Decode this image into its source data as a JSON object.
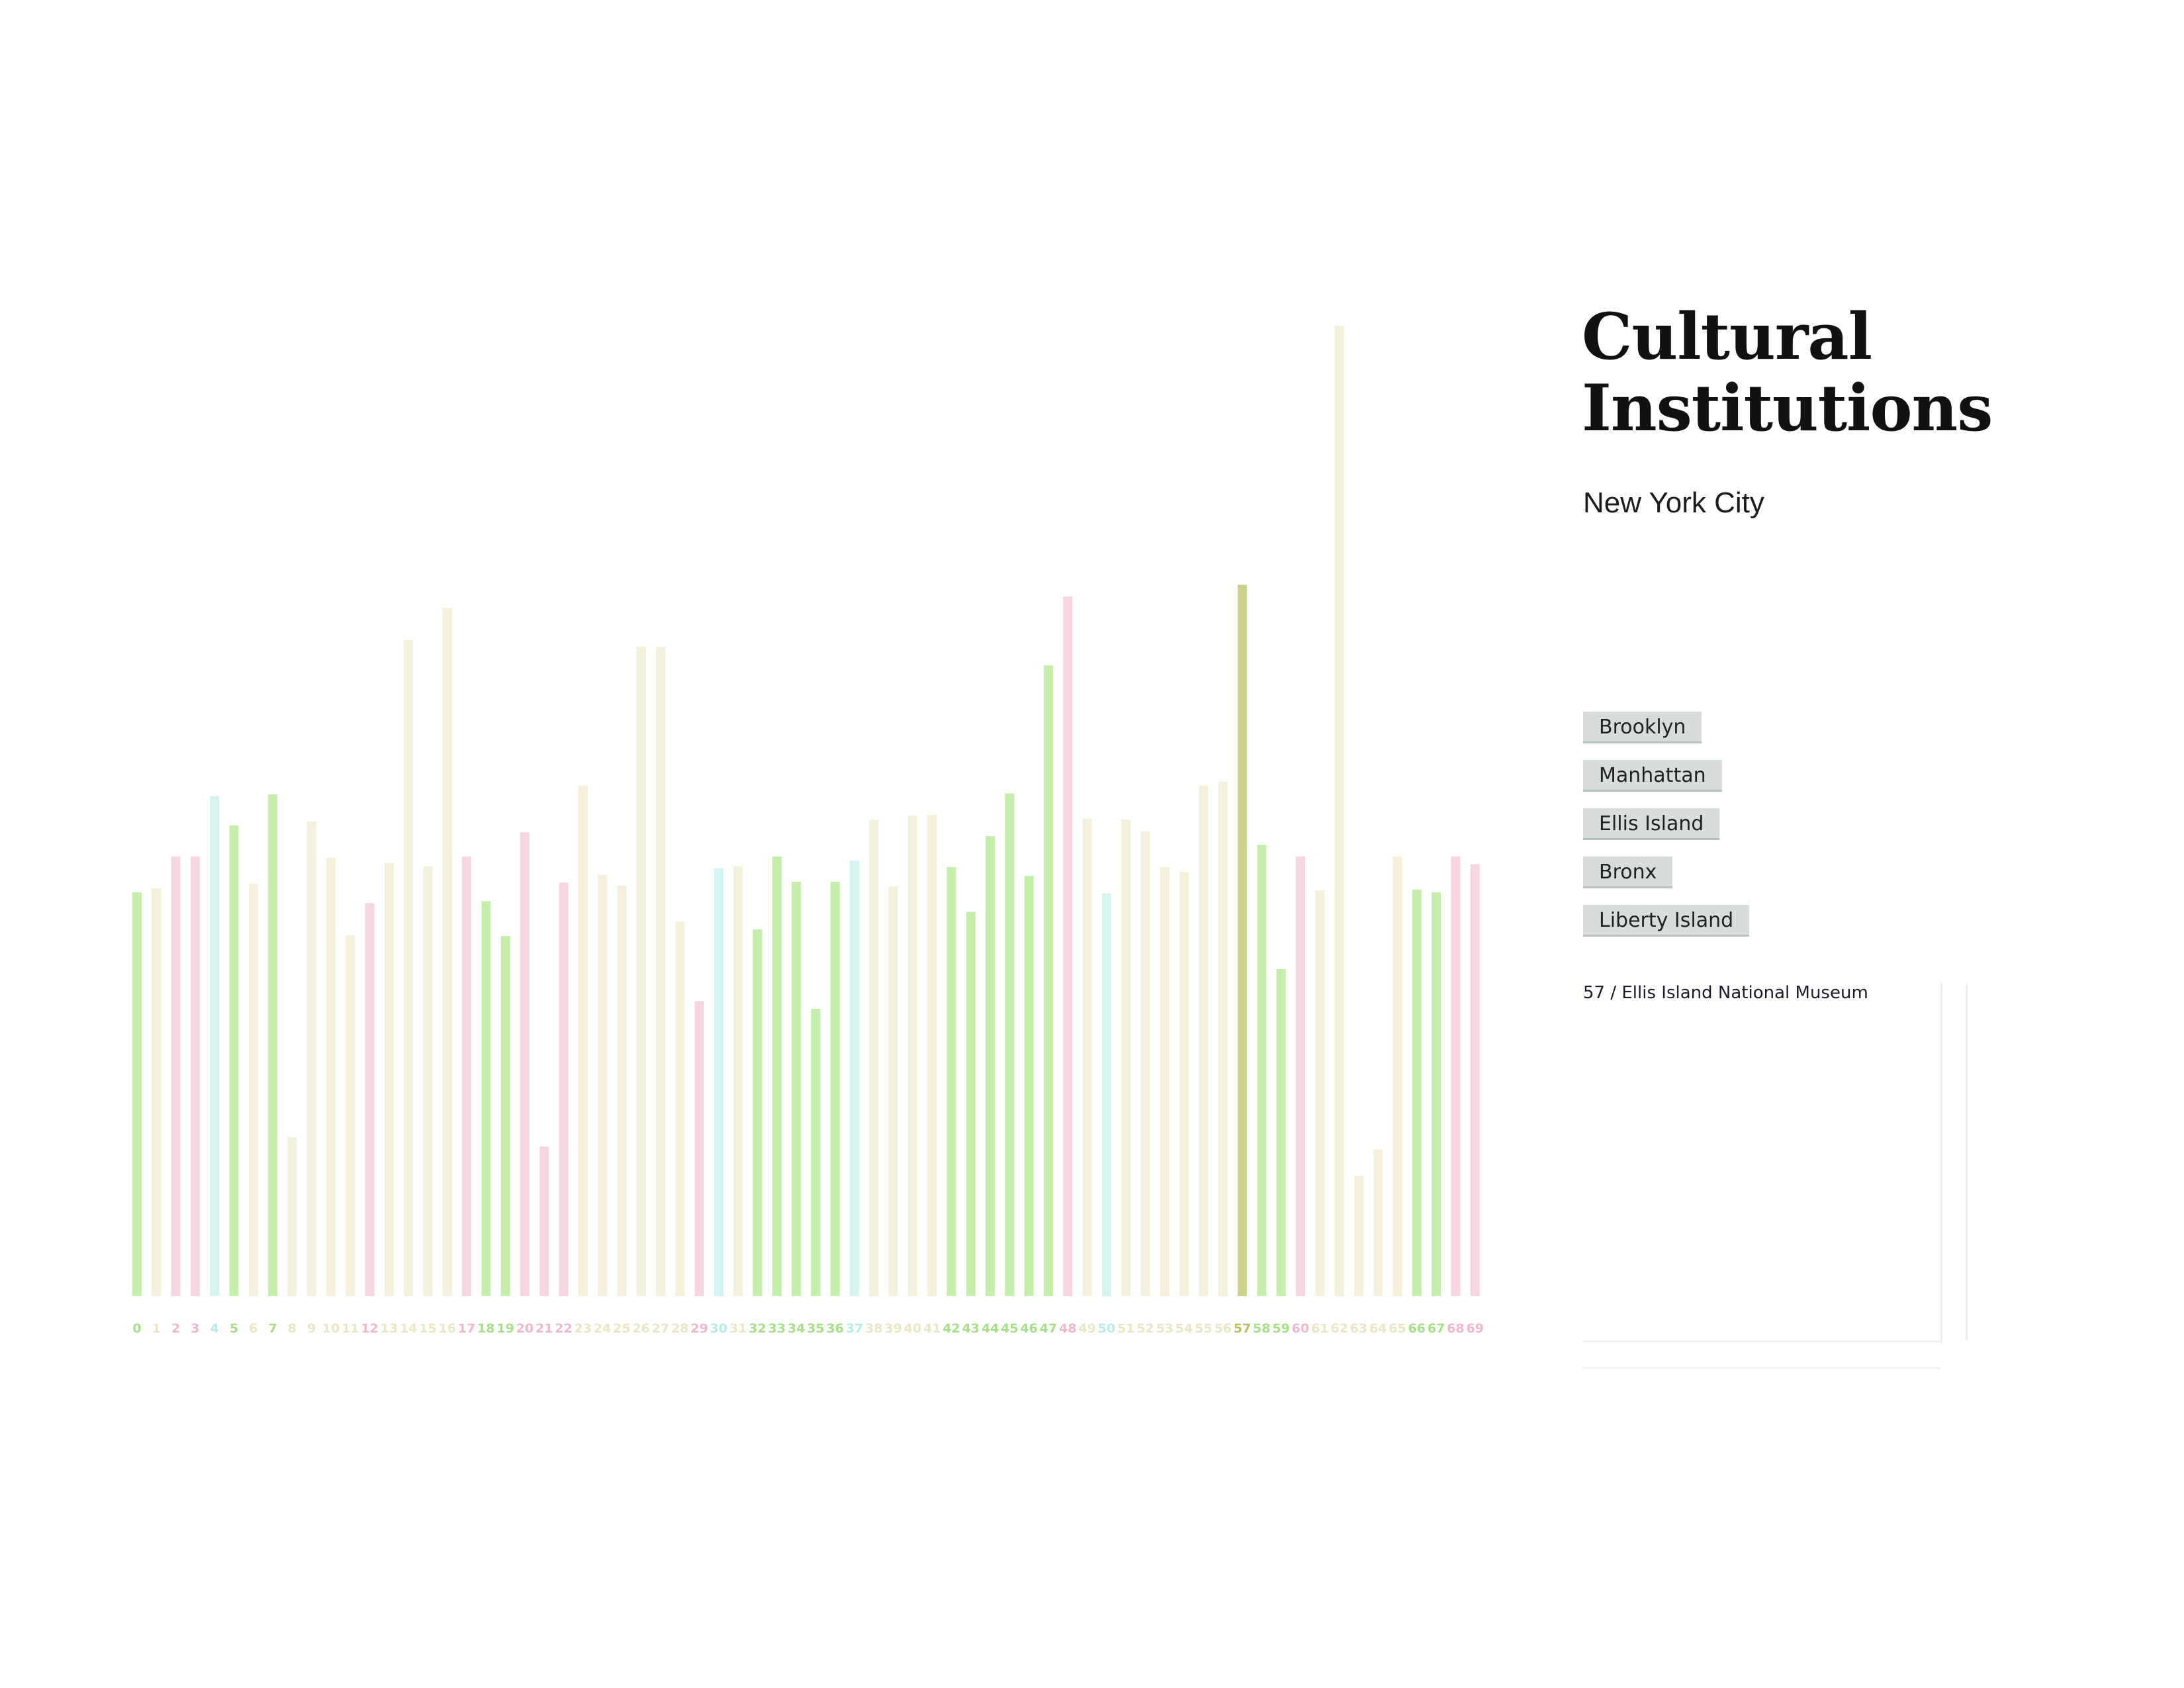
{
  "header": {
    "title_line1": "Cultural",
    "title_line2": "Institutions",
    "subtitle": "New York City"
  },
  "filters": [
    {
      "label": "Brooklyn"
    },
    {
      "label": "Manhattan"
    },
    {
      "label": "Ellis Island"
    },
    {
      "label": "Bronx"
    },
    {
      "label": "Liberty Island"
    }
  ],
  "detail": {
    "label": "57 / Ellis Island National Museum"
  },
  "colors": {
    "green": "#c5eeaa",
    "pink": "#f5d6df",
    "cream": "#f2f2dc",
    "cyan": "#d6f3ef",
    "highlight": "#cbd28a",
    "green_label": "#a6e08a",
    "pink_label": "#f0b8cb",
    "cream_label": "#e8e8c4",
    "cyan_label": "#b8ece4",
    "highlight_label": "#b9c264"
  },
  "chart_data": {
    "type": "bar",
    "title": "Cultural Institutions",
    "subtitle": "New York City",
    "highlighted_category": "57",
    "ylim": [
      0,
      100
    ],
    "grid": false,
    "categories": [
      "0",
      "1",
      "2",
      "3",
      "4",
      "5",
      "6",
      "7",
      "8",
      "9",
      "10",
      "11",
      "12",
      "13",
      "14",
      "15",
      "16",
      "17",
      "18",
      "19",
      "20",
      "21",
      "22",
      "23",
      "24",
      "25",
      "26",
      "27",
      "28",
      "29",
      "30",
      "31",
      "32",
      "33",
      "34",
      "35",
      "36",
      "37",
      "38",
      "39",
      "40",
      "41",
      "42",
      "43",
      "44",
      "45",
      "46",
      "47",
      "48",
      "49",
      "50",
      "51",
      "52",
      "53",
      "54",
      "55",
      "56",
      "57",
      "58",
      "59",
      "60",
      "61",
      "62",
      "63",
      "64",
      "65",
      "66",
      "67",
      "68",
      "69"
    ],
    "values": [
      41.6,
      42.0,
      45.3,
      45.3,
      51.5,
      48.5,
      42.5,
      51.7,
      16.4,
      48.9,
      45.2,
      37.2,
      40.5,
      44.6,
      67.6,
      44.3,
      70.9,
      45.3,
      40.7,
      37.1,
      47.8,
      15.4,
      42.6,
      52.6,
      43.4,
      42.3,
      66.9,
      66.9,
      38.6,
      30.4,
      44.1,
      44.3,
      37.8,
      45.3,
      42.7,
      29.6,
      42.7,
      44.9,
      49.1,
      42.2,
      49.5,
      49.6,
      44.2,
      39.6,
      47.4,
      51.8,
      43.3,
      65.0,
      72.1,
      49.2,
      41.5,
      49.1,
      47.9,
      44.2,
      43.7,
      52.6,
      53.0,
      73.3,
      46.5,
      33.7,
      45.3,
      41.8,
      100.0,
      12.4,
      15.1,
      45.3,
      41.9,
      41.6,
      45.3,
      44.5
    ],
    "bar_colors": [
      "green",
      "cream",
      "pink",
      "pink",
      "cyan",
      "green",
      "cream",
      "green",
      "cream",
      "cream",
      "cream",
      "cream",
      "pink",
      "cream",
      "cream",
      "cream",
      "cream",
      "pink",
      "green",
      "green",
      "pink",
      "pink",
      "pink",
      "cream",
      "cream",
      "cream",
      "cream",
      "cream",
      "cream",
      "pink",
      "cyan",
      "cream",
      "green",
      "green",
      "green",
      "green",
      "green",
      "cyan",
      "cream",
      "cream",
      "cream",
      "cream",
      "green",
      "green",
      "green",
      "green",
      "green",
      "green",
      "pink",
      "cream",
      "cyan",
      "cream",
      "cream",
      "cream",
      "cream",
      "cream",
      "cream",
      "highlight",
      "green",
      "green",
      "pink",
      "cream",
      "cream",
      "cream",
      "cream",
      "cream",
      "green",
      "green",
      "pink",
      "pink"
    ]
  }
}
